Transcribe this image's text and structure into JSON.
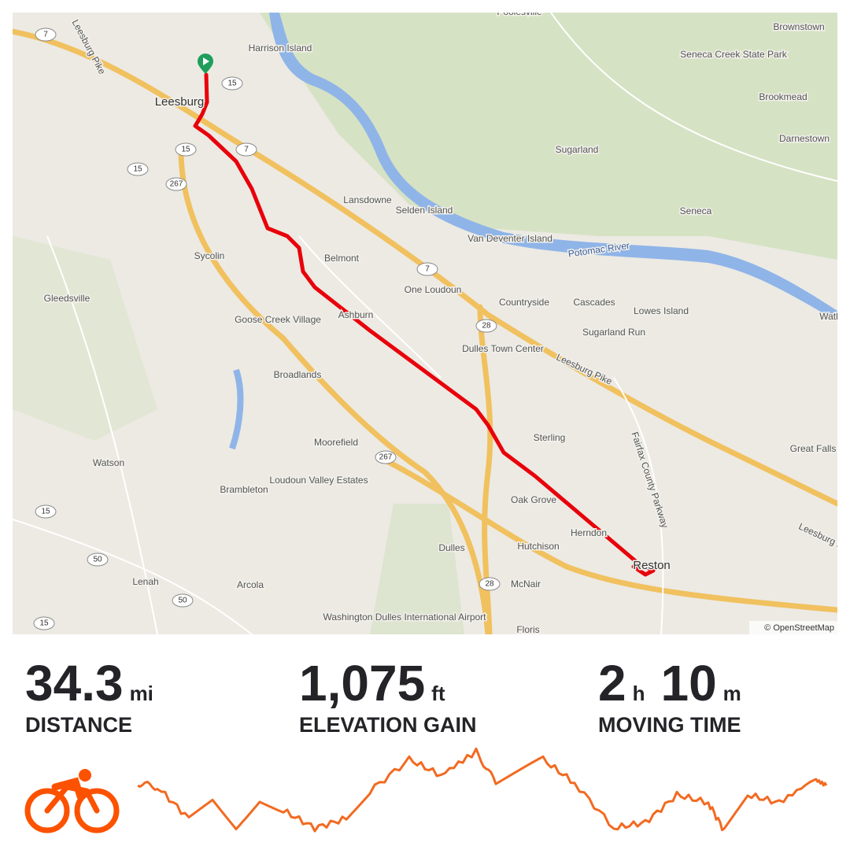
{
  "map": {
    "labels": [
      "Poolesville",
      "Brownstown",
      "Harrison Island",
      "Seneca Creek State Park",
      "Leesburg",
      "Brookmead",
      "Darnestown",
      "Sugarland",
      "Lansdowne",
      "Selden Island",
      "Seneca",
      "Van Deventer Island",
      "Potomac River",
      "Belmont",
      "One Loudoun",
      "Countryside",
      "Cascades",
      "Lowes Island",
      "Watkins Island",
      "Gleedsville",
      "Sycolin",
      "Goose Creek Village",
      "Ashburn",
      "Sugarland Run",
      "Dulles Town Center",
      "Leesburg Pike",
      "Broadlands",
      "Sterling",
      "Great Falls",
      "Fairfax County Parkway",
      "Moorefield",
      "Watson",
      "Loudoun Valley Estates",
      "Brambleton",
      "Oak Grove",
      "Herndon",
      "Reston",
      "Leesburg Pike",
      "Leesburg Pike",
      "Dulles",
      "Hutchison",
      "McNair",
      "Lenah",
      "Arcola",
      "Washington Dulles International Airport",
      "Floris"
    ],
    "shields": [
      "7",
      "7",
      "7",
      "15",
      "15",
      "15",
      "15",
      "15",
      "267",
      "267",
      "28",
      "28",
      "50",
      "50"
    ],
    "attribution": "© OpenStreetMap"
  },
  "stats": [
    {
      "value": "34.3",
      "unit": "mi",
      "label": "DISTANCE"
    },
    {
      "value": "1,075",
      "unit": "ft",
      "label": "ELEVATION GAIN"
    },
    {
      "value": "2",
      "unit": "h",
      "value2": "10",
      "unit2": "m",
      "label": "MOVING TIME"
    }
  ]
}
